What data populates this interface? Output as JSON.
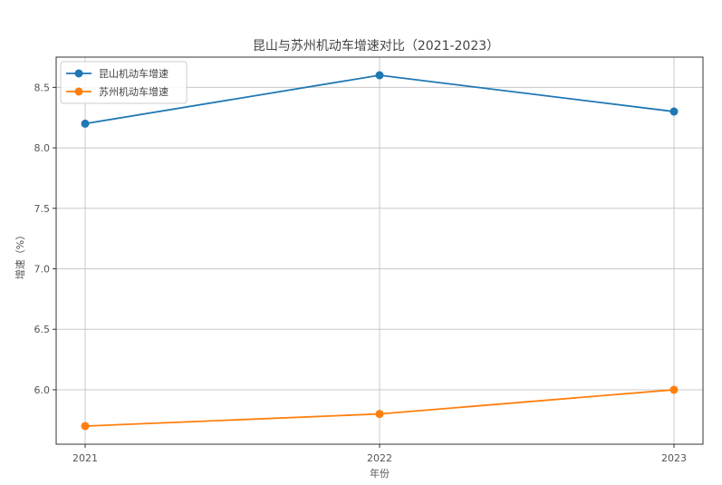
{
  "chart_data": {
    "type": "line",
    "title": "昆山与苏州机动车增速对比（2021-2023）",
    "xlabel": "年份",
    "ylabel": "增速（%）",
    "categories": [
      "2021",
      "2022",
      "2023"
    ],
    "ylim": [
      5.55,
      8.75
    ],
    "yticks": [
      "6.0",
      "6.5",
      "7.0",
      "7.5",
      "8.0",
      "8.5"
    ],
    "grid": true,
    "legend_position": "top-left",
    "series": [
      {
        "name": "昆山机动车增速",
        "color": "#1f77b4",
        "values": [
          8.2,
          8.6,
          8.3
        ]
      },
      {
        "name": "苏州机动车增速",
        "color": "#ff7f0e",
        "values": [
          5.7,
          5.8,
          6.0
        ]
      }
    ]
  }
}
